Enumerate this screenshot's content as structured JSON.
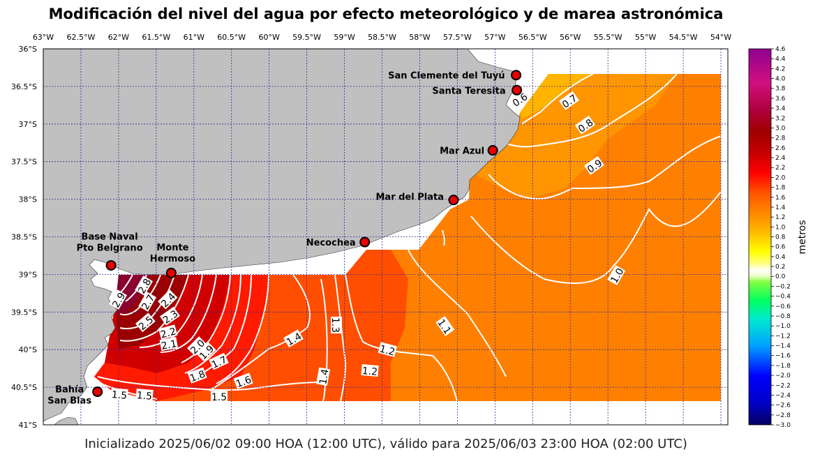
{
  "title": "Modificación del nivel del agua por efecto meteorológico y de marea astronómica",
  "footer": "Inicializado 2025/06/02 09:00 HOA (12:00 UTC), válido para 2025/06/03 23:00 HOA (02:00 UTC)",
  "axes": {
    "lon_labels": [
      "63°W",
      "62.5°W",
      "62°W",
      "61.5°W",
      "61°W",
      "60.5°W",
      "60°W",
      "59.5°W",
      "59°W",
      "58.5°W",
      "58°W",
      "57.5°W",
      "57°W",
      "56.5°W",
      "56°W",
      "55.5°W",
      "55°W",
      "54.5°W",
      "54°W"
    ],
    "lat_labels": [
      "36°S",
      "36.5°S",
      "37°S",
      "37.5°S",
      "38°S",
      "38.5°S",
      "39°S",
      "39.5°S",
      "40°S",
      "40.5°S",
      "41°S"
    ],
    "lon_range": [
      -63,
      -54
    ],
    "lat_range": [
      -41,
      -36
    ],
    "gridlines": true
  },
  "locations": [
    {
      "name": "San Clemente del Tuyú",
      "lines": [
        "San Clemente del Tuyú"
      ],
      "lon": -56.72,
      "lat": -36.35
    },
    {
      "name": "Santa Teresita",
      "lines": [
        "Santa Teresita"
      ],
      "lon": -56.71,
      "lat": -36.55
    },
    {
      "name": "Mar Azul",
      "lines": [
        "Mar Azul"
      ],
      "lon": -57.03,
      "lat": -37.35
    },
    {
      "name": "Mar del Plata",
      "lines": [
        "Mar del Plata"
      ],
      "lon": -57.55,
      "lat": -38.01
    },
    {
      "name": "Necochea",
      "lines": [
        "Necochea"
      ],
      "lon": -58.73,
      "lat": -38.57
    },
    {
      "name": "Base Naval Pto Belgrano",
      "lines": [
        "Base Naval",
        "Pto Belgrano"
      ],
      "lon": -62.1,
      "lat": -38.88
    },
    {
      "name": "Monte Hermoso",
      "lines": [
        "Monte",
        "Hermoso"
      ],
      "lon": -61.3,
      "lat": -38.98
    },
    {
      "name": "Bahía San Blas",
      "lines": [
        "Bahía",
        "San Blas"
      ],
      "lon": -62.28,
      "lat": -40.56
    }
  ],
  "contour_labels": [
    "0.6",
    "0.7",
    "0.8",
    "0.9",
    "1.0",
    "1.1",
    "1.2",
    "1.2",
    "1.3",
    "1.4",
    "1.4",
    "1.5",
    "1.5",
    "1.5",
    "1.6",
    "1.7",
    "1.8",
    "1.9",
    "2.0",
    "2.1",
    "2.2",
    "2.3",
    "2.4",
    "2.5",
    "2.7",
    "2.8",
    "2.9"
  ],
  "colorbar": {
    "label": "metros",
    "range": [
      -3.0,
      4.6
    ],
    "ticks": [
      "4.6",
      "4.4",
      "4.2",
      "4.0",
      "3.8",
      "3.6",
      "3.4",
      "3.2",
      "3.0",
      "2.8",
      "2.6",
      "2.4",
      "2.2",
      "2.0",
      "1.8",
      "1.6",
      "1.4",
      "1.2",
      "1.0",
      "0.8",
      "0.6",
      "0.4",
      "0.2",
      "0.0",
      "−0.2",
      "−0.4",
      "−0.6",
      "−0.8",
      "−1.0",
      "−1.2",
      "−1.4",
      "−1.6",
      "−1.8",
      "−2.0",
      "−2.2",
      "−2.4",
      "−2.6",
      "−2.8",
      "−3.0"
    ]
  },
  "colors": {
    "land": "#c0c0c0",
    "grid": "#2b2b9a",
    "station_fill": "#e60000",
    "contour": "#ffffff"
  }
}
